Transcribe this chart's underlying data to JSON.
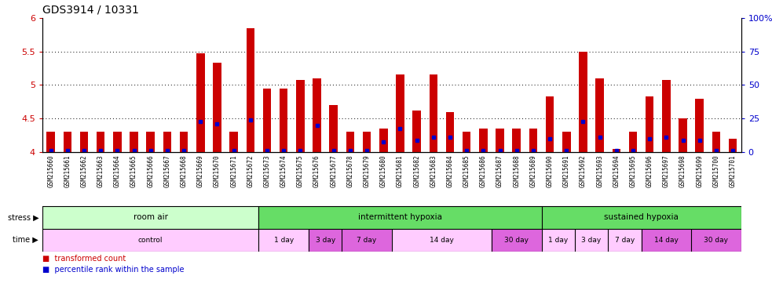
{
  "title": "GDS3914 / 10331",
  "samples": [
    "GSM215660",
    "GSM215661",
    "GSM215662",
    "GSM215663",
    "GSM215664",
    "GSM215665",
    "GSM215666",
    "GSM215667",
    "GSM215668",
    "GSM215669",
    "GSM215670",
    "GSM215671",
    "GSM215672",
    "GSM215673",
    "GSM215674",
    "GSM215675",
    "GSM215676",
    "GSM215677",
    "GSM215678",
    "GSM215679",
    "GSM215680",
    "GSM215681",
    "GSM215682",
    "GSM215683",
    "GSM215684",
    "GSM215685",
    "GSM215686",
    "GSM215687",
    "GSM215688",
    "GSM215689",
    "GSM215690",
    "GSM215691",
    "GSM215692",
    "GSM215693",
    "GSM215694",
    "GSM215695",
    "GSM215696",
    "GSM215697",
    "GSM215698",
    "GSM215699",
    "GSM215700",
    "GSM215701"
  ],
  "red_values": [
    4.3,
    4.3,
    4.3,
    4.3,
    4.3,
    4.3,
    4.3,
    4.3,
    4.3,
    5.47,
    5.33,
    4.3,
    5.85,
    4.95,
    4.95,
    5.08,
    5.1,
    4.7,
    4.3,
    4.3,
    4.35,
    5.16,
    4.62,
    5.16,
    4.6,
    4.3,
    4.35,
    4.35,
    4.35,
    4.35,
    4.83,
    4.3,
    5.5,
    5.1,
    4.05,
    4.3,
    4.83,
    5.08,
    4.5,
    4.8,
    4.3,
    4.2
  ],
  "blue_values": [
    4.02,
    4.02,
    4.02,
    4.02,
    4.02,
    4.02,
    4.02,
    4.02,
    4.02,
    4.45,
    4.42,
    4.02,
    4.48,
    4.02,
    4.02,
    4.02,
    4.4,
    4.02,
    4.02,
    4.02,
    4.15,
    4.35,
    4.18,
    4.22,
    4.22,
    4.02,
    4.02,
    4.02,
    4.02,
    4.02,
    4.2,
    4.02,
    4.45,
    4.22,
    4.02,
    4.02,
    4.2,
    4.22,
    4.18,
    4.18,
    4.02,
    4.02
  ],
  "ylim": [
    4.0,
    6.0
  ],
  "yticks_left": [
    4.0,
    4.5,
    5.0,
    5.5,
    6.0
  ],
  "yticks_left_labels": [
    "4",
    "4.5",
    "5",
    "5.5",
    "6"
  ],
  "yticks_right": [
    0,
    25,
    50,
    75,
    100
  ],
  "yticks_right_labels": [
    "0",
    "25",
    "50",
    "75",
    "100%"
  ],
  "stress_groups": [
    {
      "label": "room air",
      "start": 0,
      "end": 13,
      "color": "#ccffcc"
    },
    {
      "label": "intermittent hypoxia",
      "start": 13,
      "end": 30,
      "color": "#66dd66"
    },
    {
      "label": "sustained hypoxia",
      "start": 30,
      "end": 42,
      "color": "#66dd66"
    }
  ],
  "time_groups": [
    {
      "label": "control",
      "start": 0,
      "end": 13,
      "color": "#ffccff"
    },
    {
      "label": "1 day",
      "start": 13,
      "end": 16,
      "color": "#ffccff"
    },
    {
      "label": "3 day",
      "start": 16,
      "end": 18,
      "color": "#dd66dd"
    },
    {
      "label": "7 day",
      "start": 18,
      "end": 21,
      "color": "#dd66dd"
    },
    {
      "label": "14 day",
      "start": 21,
      "end": 27,
      "color": "#ffccff"
    },
    {
      "label": "30 day",
      "start": 27,
      "end": 30,
      "color": "#dd66dd"
    },
    {
      "label": "1 day",
      "start": 30,
      "end": 32,
      "color": "#ffccff"
    },
    {
      "label": "3 day",
      "start": 32,
      "end": 34,
      "color": "#ffccff"
    },
    {
      "label": "7 day",
      "start": 34,
      "end": 36,
      "color": "#ffccff"
    },
    {
      "label": "14 day",
      "start": 36,
      "end": 39,
      "color": "#dd66dd"
    },
    {
      "label": "30 day",
      "start": 39,
      "end": 42,
      "color": "#dd66dd"
    }
  ],
  "bar_color": "#cc0000",
  "dot_color": "#0000cc",
  "background_color": "#ffffff",
  "label_bg_color": "#dddddd",
  "title_fontsize": 10,
  "axis_label_color_left": "#cc0000",
  "axis_label_color_right": "#0000cc",
  "legend_red_label": "transformed count",
  "legend_blue_label": "percentile rank within the sample",
  "stress_label": "stress",
  "time_label": "time"
}
